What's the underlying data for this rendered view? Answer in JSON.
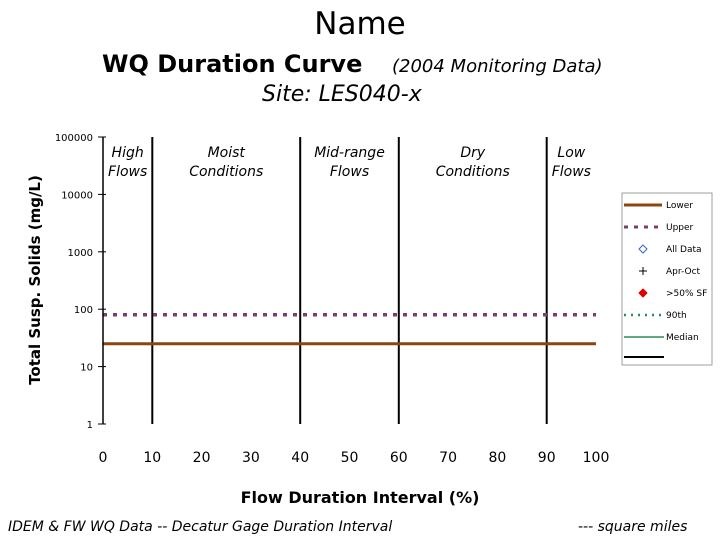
{
  "header": {
    "title": "Name",
    "subtitle": "WQ Duration Curve",
    "subtitle_note": "(2004 Monitoring Data)",
    "site": "Site:  LES040-x"
  },
  "footer": {
    "left": "IDEM & FW WQ Data -- Decatur Gage Duration Interval",
    "right": "--- square miles"
  },
  "chart_data": {
    "type": "line",
    "title": "WQ Duration Curve",
    "xlabel": "Flow Duration Interval (%)",
    "ylabel": "Total Susp. Solids (mg/L)",
    "xlim": [
      0,
      100
    ],
    "ylim": [
      1,
      100000
    ],
    "yscale": "log",
    "x_ticks": [
      0,
      10,
      20,
      30,
      40,
      50,
      60,
      70,
      80,
      90,
      100
    ],
    "y_ticks": [
      1,
      10,
      100,
      1000,
      10000,
      100000
    ],
    "zone_boundaries": [
      10,
      40,
      60,
      90
    ],
    "zones": [
      {
        "label": "High Flows",
        "center": 5
      },
      {
        "label": "Moist Conditions",
        "center": 25
      },
      {
        "label": "Mid-range Flows",
        "center": 50
      },
      {
        "label": "Dry Conditions",
        "center": 75
      },
      {
        "label": "Low Flows",
        "center": 95
      }
    ],
    "series": [
      {
        "name": "Lower",
        "style": "solid",
        "color": "#8B4513",
        "x": [
          0,
          100
        ],
        "values": [
          25,
          25
        ]
      },
      {
        "name": "Upper",
        "style": "dashed",
        "color": "#7B3F6E",
        "x": [
          0,
          100
        ],
        "values": [
          80,
          80
        ]
      }
    ],
    "legend": {
      "placement": "right",
      "entries": [
        {
          "name": "Lower",
          "marker": "line-solid",
          "color": "#8B4513"
        },
        {
          "name": "Upper",
          "marker": "line-dashed",
          "color": "#7B3F6E"
        },
        {
          "name": "All Data",
          "marker": "diamond-open",
          "color": "#3366cc"
        },
        {
          "name": "Apr-Oct",
          "marker": "plus",
          "color": "#000000"
        },
        {
          "name": ">50% SF",
          "marker": "diamond-filled",
          "color": "#dd0000"
        },
        {
          "name": "90th",
          "marker": "line-dotted",
          "color": "#2e8b57"
        },
        {
          "name": "Median",
          "marker": "line-solid",
          "color": "#2e8b57"
        },
        {
          "name": "",
          "marker": "line-solid",
          "color": "#000000"
        }
      ]
    },
    "grid": false
  }
}
